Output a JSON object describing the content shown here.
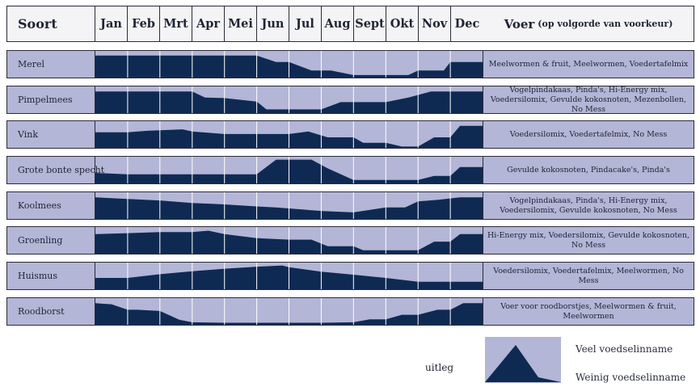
{
  "header": {
    "soort": "Soort",
    "voer": "Voer",
    "voer_sub": "(op volgorde van voorkeur)"
  },
  "legend": {
    "label": "uitleg",
    "high": "Veel voedselinname",
    "low": "Weinig voedselinname"
  },
  "colors": {
    "fill": "#0f2a52",
    "background": "#b3b6d6"
  },
  "chart_data": {
    "type": "area",
    "title": "",
    "categories": [
      "Jan",
      "Feb",
      "Mrt",
      "Apr",
      "Mei",
      "Jun",
      "Jul",
      "Aug",
      "Sept",
      "Okt",
      "Nov",
      "Dec"
    ],
    "ylim": [
      0,
      1
    ],
    "series": [
      {
        "name": "Merel",
        "voer": "Meelwormen & fruit, Meelwormen, Voedertafelmix",
        "x": [
          0,
          1,
          2,
          3,
          4,
          5,
          5.6,
          6,
          6.7,
          7.3,
          8,
          8.5,
          9,
          9.7,
          10,
          10.8,
          11,
          12
        ],
        "values": [
          0.88,
          0.88,
          0.88,
          0.88,
          0.88,
          0.88,
          0.62,
          0.62,
          0.28,
          0.28,
          0.1,
          0.1,
          0.1,
          0.1,
          0.28,
          0.28,
          0.62,
          0.62
        ]
      },
      {
        "name": "Pimpelmees",
        "voer": "Vogelpindakaas, Pinda's, Hi-Energy mix, Voedersilomix, Gevulde kokosnoten, Mezenbollen, No Mess",
        "x": [
          0,
          1,
          2,
          3,
          3.4,
          4,
          5,
          5.3,
          6,
          7,
          7.6,
          8,
          9,
          9.7,
          10.4,
          11,
          12
        ],
        "values": [
          0.86,
          0.86,
          0.86,
          0.86,
          0.62,
          0.6,
          0.46,
          0.15,
          0.15,
          0.15,
          0.44,
          0.44,
          0.44,
          0.62,
          0.86,
          0.86,
          0.86
        ]
      },
      {
        "name": "Vink",
        "voer": "Voedersilomix, Voedertafelmix, No Mess",
        "x": [
          0,
          1,
          1.6,
          2.7,
          3,
          4,
          5,
          6,
          6.6,
          7.2,
          8,
          8.3,
          9,
          9.5,
          10,
          10.5,
          11,
          11.3,
          12
        ],
        "values": [
          0.62,
          0.62,
          0.68,
          0.74,
          0.65,
          0.55,
          0.55,
          0.55,
          0.65,
          0.42,
          0.42,
          0.2,
          0.2,
          0.05,
          0.05,
          0.42,
          0.42,
          0.88,
          0.88
        ]
      },
      {
        "name": "Grote bonte specht",
        "voer": "Gevulde kokosnoten, Pindacake's, Pinda's",
        "x": [
          0,
          1,
          2,
          3,
          4,
          5,
          5.6,
          6,
          6.7,
          7.2,
          8,
          9,
          10,
          10.5,
          11,
          11.3,
          12
        ],
        "values": [
          0.42,
          0.36,
          0.36,
          0.36,
          0.36,
          0.36,
          0.95,
          0.95,
          0.95,
          0.6,
          0.14,
          0.14,
          0.14,
          0.3,
          0.3,
          0.65,
          0.65
        ]
      },
      {
        "name": "Koolmees",
        "voer": "Vogelpindakaas, Pinda's, Hi-Energy mix, Voedersilomix, Gevulde kokosnoten, No Mess",
        "x": [
          0,
          1,
          2,
          3,
          4,
          5,
          5.6,
          6,
          7,
          8,
          9,
          9.6,
          10,
          10.6,
          11,
          11.3,
          12
        ],
        "values": [
          0.86,
          0.8,
          0.74,
          0.64,
          0.58,
          0.5,
          0.46,
          0.42,
          0.32,
          0.26,
          0.46,
          0.46,
          0.7,
          0.76,
          0.82,
          0.86,
          0.86
        ]
      },
      {
        "name": "Groenling",
        "voer": "Hi-Energy mix, Voedersilomix, Gevulde kokosnoten, No Mess",
        "x": [
          0,
          1,
          2,
          3,
          3.5,
          4,
          5,
          6,
          6.7,
          7.2,
          8,
          8.3,
          9,
          9.6,
          10,
          10.5,
          11,
          11.3,
          12
        ],
        "values": [
          0.78,
          0.82,
          0.86,
          0.86,
          0.92,
          0.78,
          0.62,
          0.56,
          0.56,
          0.3,
          0.3,
          0.14,
          0.14,
          0.14,
          0.14,
          0.48,
          0.48,
          0.78,
          0.78
        ]
      },
      {
        "name": "Huismus",
        "voer": "Voedersilomix, Voedertafelmix, Meelwormen, No Mess",
        "x": [
          0,
          1,
          2,
          3,
          4,
          5,
          5.8,
          6,
          7,
          8,
          9,
          10,
          11,
          12
        ],
        "values": [
          0.45,
          0.45,
          0.6,
          0.72,
          0.82,
          0.9,
          0.95,
          0.88,
          0.7,
          0.58,
          0.45,
          0.3,
          0.3,
          0.3
        ]
      },
      {
        "name": "Roodborst",
        "voer": "Voer voor roodborstjes, Meelwormen & fruit, Meelwormen",
        "x": [
          0,
          0.5,
          1,
          1.3,
          2,
          2.6,
          3,
          4,
          5,
          6,
          7,
          8,
          8.5,
          9,
          9.5,
          10,
          10.6,
          11,
          11.4,
          12
        ],
        "values": [
          0.86,
          0.82,
          0.6,
          0.6,
          0.55,
          0.2,
          0.1,
          0.08,
          0.08,
          0.08,
          0.08,
          0.1,
          0.22,
          0.22,
          0.4,
          0.4,
          0.6,
          0.6,
          0.86,
          0.86
        ]
      }
    ]
  }
}
